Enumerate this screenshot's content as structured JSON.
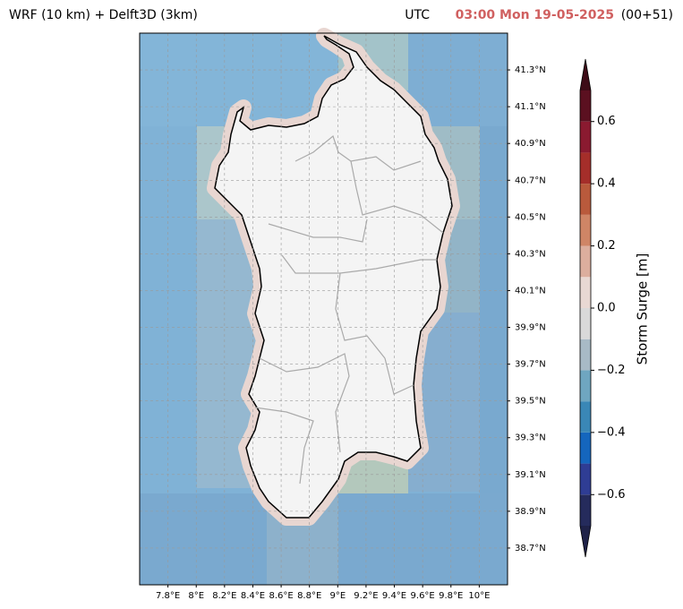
{
  "header": {
    "title": "WRF (10 km) + Delft3D (3km)",
    "utc_label": "UTC",
    "time": "03:00 Mon 19-05-2025",
    "lead": "(00+51)"
  },
  "map": {
    "lon_range": [
      7.6,
      10.2
    ],
    "lat_range": [
      38.5,
      41.5
    ],
    "lat_ticks": [
      {
        "value": 38.7,
        "label": "38.7°N"
      },
      {
        "value": 38.9,
        "label": "38.9°N"
      },
      {
        "value": 39.1,
        "label": "39.1°N"
      },
      {
        "value": 39.3,
        "label": "39.3°N"
      },
      {
        "value": 39.5,
        "label": "39.5°N"
      },
      {
        "value": 39.7,
        "label": "39.7°N"
      },
      {
        "value": 39.9,
        "label": "39.9°N"
      },
      {
        "value": 40.1,
        "label": "40.1°N"
      },
      {
        "value": 40.3,
        "label": "40.3°N"
      },
      {
        "value": 40.5,
        "label": "40.5°N"
      },
      {
        "value": 40.7,
        "label": "40.7°N"
      },
      {
        "value": 40.9,
        "label": "40.9°N"
      },
      {
        "value": 41.1,
        "label": "41.1°N"
      },
      {
        "value": 41.3,
        "label": "41.3°N"
      }
    ],
    "lon_ticks": [
      {
        "value": 7.8,
        "label": "7.8°E"
      },
      {
        "value": 8,
        "label": "8°E"
      },
      {
        "value": 8.2,
        "label": "8.2°E"
      },
      {
        "value": 8.4,
        "label": "8.4°E"
      },
      {
        "value": 8.6,
        "label": "8.6°E"
      },
      {
        "value": 8.8,
        "label": "8.8°E"
      },
      {
        "value": 9,
        "label": "9°E"
      },
      {
        "value": 9.2,
        "label": "9.2°E"
      },
      {
        "value": 9.4,
        "label": "9.4°E"
      },
      {
        "value": 9.6,
        "label": "9.6°E"
      },
      {
        "value": 9.8,
        "label": "9.8°E"
      },
      {
        "value": 10,
        "label": "10°E"
      }
    ]
  },
  "colorbar": {
    "label": "Storm Surge [m]",
    "levels": [
      -0.7,
      -0.6,
      -0.5,
      -0.4,
      -0.3,
      -0.2,
      -0.1,
      0,
      0.1,
      0.2,
      0.3,
      0.4,
      0.5,
      0.6,
      0.7
    ],
    "colors": [
      "#252b5c",
      "#2f3d94",
      "#1566bd",
      "#3a87b6",
      "#6fa6c0",
      "#a8bac6",
      "#d9d9d9",
      "#e8d8d3",
      "#dcae9e",
      "#cf8566",
      "#b95a3c",
      "#a52e2a",
      "#8a1a30",
      "#5b1020"
    ],
    "under_color": "#1f2248",
    "over_color": "#3d0c17",
    "ticks": [
      {
        "value": -0.6,
        "label": "−0.6"
      },
      {
        "value": -0.4,
        "label": "−0.4"
      },
      {
        "value": -0.2,
        "label": "−0.2"
      },
      {
        "value": 0,
        "label": "0.0"
      },
      0.2,
      0.4,
      0.6
    ]
  }
}
